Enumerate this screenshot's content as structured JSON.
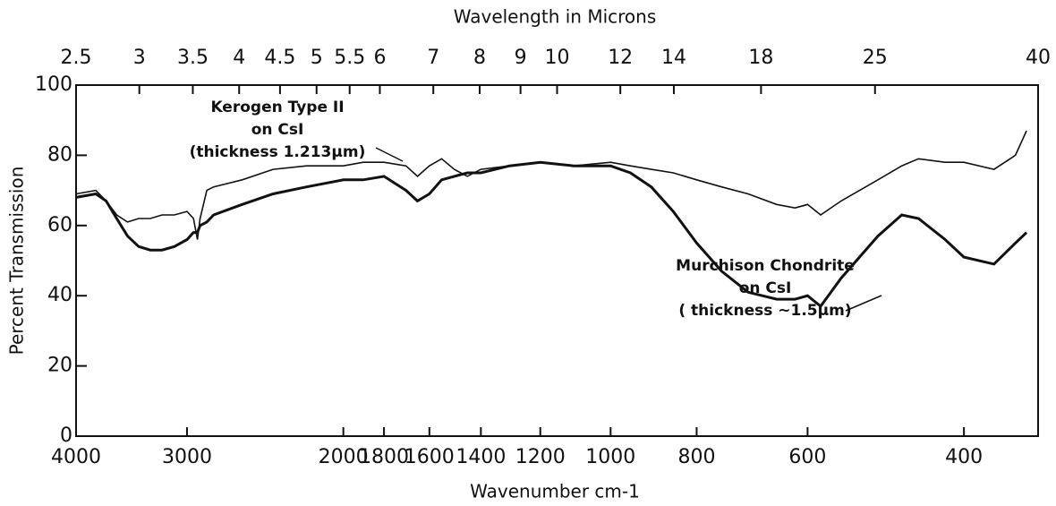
{
  "chart_data": {
    "type": "line",
    "title": "Wavelength in Microns",
    "x_label": "Wavenumber cm-1",
    "y_label": "Percent Transmission",
    "x_log": true,
    "xlim": [
      4000,
      330
    ],
    "xticks": [
      4000,
      3000,
      2000,
      1800,
      1600,
      1400,
      1200,
      1000,
      800,
      600,
      400
    ],
    "x2lim": [
      2.5,
      40
    ],
    "x2_log": true,
    "x2ticks": [
      2.5,
      3,
      3.5,
      4,
      4.5,
      5,
      5.5,
      6,
      7,
      8,
      9,
      10,
      12,
      14,
      18,
      25,
      40
    ],
    "ylim": [
      0,
      100
    ],
    "yticks": [
      0,
      20,
      40,
      60,
      80,
      100
    ],
    "x": [
      4000,
      3800,
      3700,
      3600,
      3500,
      3400,
      3300,
      3200,
      3100,
      3000,
      2950,
      2920,
      2900,
      2850,
      2800,
      2600,
      2400,
      2200,
      2000,
      1900,
      1800,
      1700,
      1650,
      1600,
      1550,
      1500,
      1450,
      1400,
      1300,
      1200,
      1100,
      1000,
      950,
      900,
      850,
      800,
      750,
      700,
      650,
      620,
      600,
      580,
      550,
      500,
      470,
      450,
      420,
      400,
      370,
      350,
      340
    ],
    "series": [
      {
        "name": "Kerogen Type II",
        "color": "#111111",
        "annotation": [
          "on CsI",
          "(thickness 1.213μm)"
        ],
        "values": [
          69,
          70,
          67,
          63,
          61,
          62,
          62,
          63,
          63,
          64,
          62,
          56,
          62,
          70,
          71,
          73,
          76,
          77,
          77,
          78,
          78,
          77,
          74,
          77,
          79,
          76,
          74,
          76,
          77,
          78,
          77,
          78,
          77,
          76,
          75,
          73,
          71,
          69,
          66,
          65,
          66,
          63,
          67,
          73,
          77,
          79,
          78,
          78,
          76,
          80,
          87
        ]
      },
      {
        "name": "Murchison Chondrite",
        "color": "#111111",
        "annotation": [
          "on CsI",
          "( thickness ~1.5μm)"
        ],
        "values": [
          68,
          69,
          67,
          62,
          57,
          54,
          53,
          53,
          54,
          56,
          58,
          58,
          60,
          61,
          63,
          66,
          69,
          71,
          73,
          73,
          74,
          70,
          67,
          69,
          73,
          74,
          75,
          75,
          77,
          78,
          77,
          77,
          75,
          71,
          64,
          55,
          47,
          41,
          39,
          39,
          40,
          37,
          45,
          57,
          63,
          62,
          56,
          51,
          49,
          55,
          58
        ]
      }
    ]
  }
}
